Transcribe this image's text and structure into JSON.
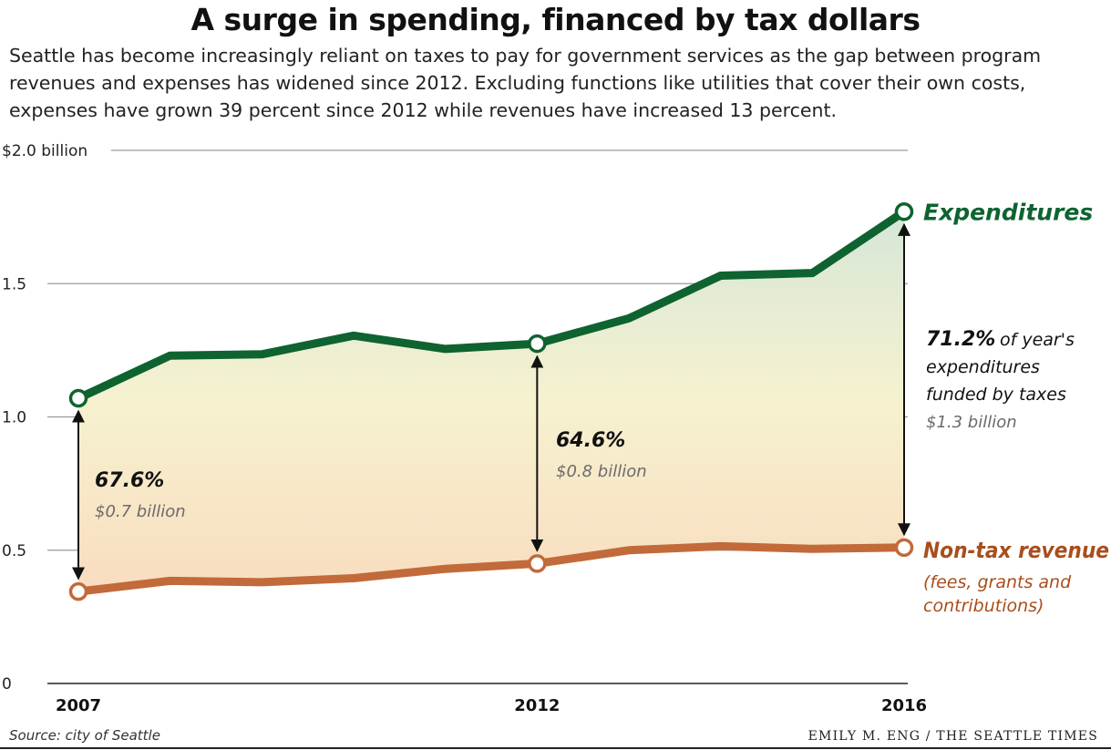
{
  "title": "A surge in spending, financed by tax dollars",
  "subtitle": "Seattle has become increasingly reliant on taxes to pay for government services as the gap between program revenues and expenses has widened since 2012. Excluding functions like utilities that cover their own costs, expenses have grown 39 percent since 2012 while revenues have increased 13 percent.",
  "source": "Source: city of Seattle",
  "credit": "EMILY M. ENG / THE SEATTLE TIMES",
  "colors": {
    "expenditures": "#0e6330",
    "revenue": "#c26a3a",
    "revenue_label": "#a84e1c",
    "grid": "#9a9a9a",
    "gray_text": "#6b6b6b"
  },
  "chart_data": {
    "type": "line",
    "x": [
      2007,
      2008,
      2009,
      2010,
      2011,
      2012,
      2013,
      2014,
      2015,
      2016
    ],
    "ylim": [
      0,
      2.0
    ],
    "y_ticks": [
      {
        "value": 2.0,
        "label": "$2.0 billion"
      },
      {
        "value": 1.5,
        "label": "1.5"
      },
      {
        "value": 1.0,
        "label": "1.0"
      },
      {
        "value": 0.5,
        "label": "0.5"
      },
      {
        "value": 0,
        "label": "0"
      }
    ],
    "x_ticks": [
      {
        "value": 2007,
        "label": "2007"
      },
      {
        "value": 2012,
        "label": "2012"
      },
      {
        "value": 2016,
        "label": "2016"
      }
    ],
    "series": [
      {
        "name": "Expenditures",
        "values": [
          1.07,
          1.23,
          1.235,
          1.305,
          1.255,
          1.275,
          1.37,
          1.53,
          1.54,
          1.77
        ],
        "markers": [
          2007,
          2012,
          2016
        ]
      },
      {
        "name": "Non-tax revenue",
        "sublabel": [
          "(fees, grants and",
          "contributions)"
        ],
        "values": [
          0.345,
          0.385,
          0.38,
          0.395,
          0.43,
          0.45,
          0.5,
          0.515,
          0.505,
          0.51
        ],
        "markers": [
          2007,
          2012,
          2016
        ]
      }
    ],
    "annotations": [
      {
        "year": 2007,
        "pct": "67.6%",
        "amount": "$0.7 billion"
      },
      {
        "year": 2012,
        "pct": "64.6%",
        "amount": "$0.8 billion"
      },
      {
        "year": 2016,
        "pct": "71.2%",
        "text_rest": "of year's",
        "lines": [
          "expenditures",
          "funded by taxes"
        ],
        "amount": "$1.3 billion"
      }
    ]
  }
}
